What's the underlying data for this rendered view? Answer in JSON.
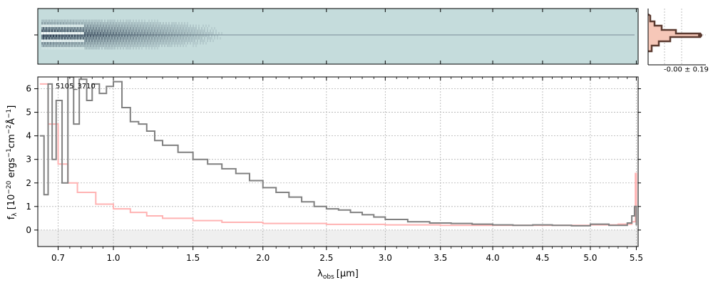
{
  "chart_data": [
    {
      "type": "heatmap",
      "panel": "2d-spectrum",
      "background_color": "#c5dcdc",
      "trace_color": "#1a2a40"
    },
    {
      "type": "line",
      "panel": "spectrum",
      "annotation": "5105_3710",
      "xlabel": "λ_obs [μm]",
      "xlabel_main": "λ",
      "xlabel_sub": "obs",
      "xlabel_unit": "[μm]",
      "ylabel": "f_λ [10^-20 ergs^-1cm^-2Å^-1]",
      "ylabel_parts": {
        "f": "f",
        "sub": "λ",
        "open": " [10",
        "e1": "−20",
        "mid1": " ergs",
        "e2": "−1",
        "mid2": "cm",
        "e3": "−2",
        "mid3": "Å",
        "e4": "−1",
        "close": "]"
      },
      "xlim": [
        0.6,
        5.52
      ],
      "ylim": [
        -0.7,
        6.5
      ],
      "x_ticks": [
        {
          "value": 0.7,
          "label": "0.7"
        },
        {
          "value": 1.0,
          "label": "1.0"
        },
        {
          "value": 1.5,
          "label": "1.5"
        },
        {
          "value": 2.0,
          "label": "2.0"
        },
        {
          "value": 2.5,
          "label": "2.5"
        },
        {
          "value": 3.0,
          "label": "3.0"
        },
        {
          "value": 3.5,
          "label": "3.5"
        },
        {
          "value": 4.0,
          "label": "4.0"
        },
        {
          "value": 4.5,
          "label": "4.5"
        },
        {
          "value": 5.0,
          "label": "5.0"
        },
        {
          "value": 5.5,
          "label": "5.5"
        }
      ],
      "y_ticks": [
        0,
        1,
        2,
        3,
        4,
        5,
        6
      ],
      "grid": true,
      "series": [
        {
          "color": "#808080",
          "x": [
            0.61,
            0.63,
            0.65,
            0.67,
            0.69,
            0.72,
            0.75,
            0.78,
            0.81,
            0.85,
            0.88,
            0.92,
            0.96,
            1.0,
            1.05,
            1.1,
            1.15,
            1.2,
            1.25,
            1.3,
            1.4,
            1.5,
            1.6,
            1.7,
            1.8,
            1.9,
            2.0,
            2.1,
            2.2,
            2.3,
            2.4,
            2.5,
            2.6,
            2.7,
            2.8,
            2.9,
            3.0,
            3.2,
            3.4,
            3.6,
            3.8,
            4.0,
            4.2,
            4.4,
            4.6,
            4.8,
            5.0,
            5.2,
            5.4,
            5.45,
            5.48,
            5.5
          ],
          "y": [
            4.0,
            1.5,
            6.2,
            3.0,
            5.5,
            2.0,
            6.5,
            4.5,
            6.4,
            5.5,
            6.2,
            5.8,
            6.1,
            6.3,
            5.2,
            4.6,
            4.5,
            4.2,
            3.8,
            3.6,
            3.3,
            3.0,
            2.8,
            2.6,
            2.4,
            2.1,
            1.8,
            1.6,
            1.4,
            1.2,
            1.0,
            0.9,
            0.85,
            0.75,
            0.65,
            0.55,
            0.45,
            0.35,
            0.3,
            0.28,
            0.25,
            0.22,
            0.2,
            0.22,
            0.2,
            0.18,
            0.25,
            0.2,
            0.3,
            0.6,
            1.0,
            0.2
          ]
        },
        {
          "color": "#ffb3b3",
          "x": [
            0.61,
            0.65,
            0.7,
            0.75,
            0.8,
            0.9,
            1.0,
            1.1,
            1.2,
            1.3,
            1.5,
            1.7,
            2.0,
            2.5,
            3.0,
            3.5,
            4.0,
            4.5,
            5.0,
            5.3,
            5.45,
            5.49,
            5.5
          ],
          "y": [
            6.2,
            4.5,
            2.8,
            2.0,
            1.6,
            1.1,
            0.9,
            0.75,
            0.6,
            0.5,
            0.4,
            0.33,
            0.28,
            0.24,
            0.22,
            0.2,
            0.2,
            0.2,
            0.22,
            0.25,
            0.35,
            2.4,
            0.3
          ]
        }
      ]
    },
    {
      "type": "histogram",
      "panel": "noise-histogram",
      "label": "-0.00 ± 0.19",
      "color": "#5b3a30",
      "fill_color": "#f6c7b8"
    }
  ]
}
